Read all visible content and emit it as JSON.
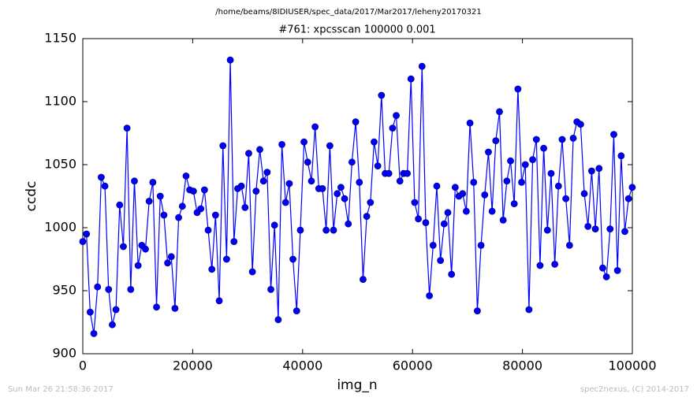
{
  "chart_data": {
    "type": "line",
    "suptitle": "/home/beams/8IDIUSER/spec_data/2017/Mar2017/leheny20170321",
    "title": "#761: xpcsscan 100000 0.001",
    "xlabel": "img_n",
    "ylabel": "ccdc",
    "footer_left": "Sun Mar 26 21:58:36 2017",
    "footer_right": "spec2nexus, (C) 2014-2017",
    "color": "#0000ff",
    "marker": "circle",
    "xlim": [
      0,
      100000
    ],
    "xticks": [
      0,
      20000,
      40000,
      60000,
      80000,
      100000
    ],
    "ylim": [
      900,
      1150
    ],
    "yticks": [
      900,
      950,
      1000,
      1050,
      1100,
      1150
    ],
    "x": [
      0,
      671,
      1342,
      2013,
      2684,
      3355,
      4026,
      4697,
      5368,
      6039,
      6710,
      7381,
      8052,
      8723,
      9394,
      10065,
      10736,
      11407,
      12078,
      12749,
      13420,
      14091,
      14762,
      15433,
      16104,
      16775,
      17446,
      18117,
      18788,
      19459,
      20130,
      20801,
      21472,
      22143,
      22814,
      23485,
      24156,
      24827,
      25498,
      26169,
      26840,
      27511,
      28182,
      28853,
      29524,
      30195,
      30866,
      31537,
      32208,
      32879,
      33550,
      34221,
      34892,
      35563,
      36234,
      36905,
      37576,
      38247,
      38918,
      39589,
      40260,
      40931,
      41602,
      42273,
      42944,
      43615,
      44286,
      44957,
      45628,
      46299,
      46970,
      47641,
      48312,
      48983,
      49654,
      50325,
      50996,
      51667,
      52338,
      53009,
      53680,
      54351,
      55022,
      55693,
      56364,
      57035,
      57706,
      58377,
      59048,
      59719,
      60390,
      61061,
      61732,
      62403,
      63074,
      63745,
      64416,
      65087,
      65758,
      66429,
      67100,
      67771,
      68442,
      69113,
      69784,
      70455,
      71126,
      71797,
      72468,
      73139,
      73810,
      74481,
      75152,
      75823,
      76494,
      77165,
      77836,
      78507,
      79178,
      79849,
      80520,
      81191,
      81862,
      82533,
      83204,
      83875,
      84546,
      85217,
      85888,
      86559,
      87230,
      87901,
      88572,
      89243,
      89914,
      90585,
      91256,
      91927,
      92598,
      93269,
      93940,
      94611,
      95282,
      95953,
      96624,
      97295,
      97966,
      98637,
      99308,
      99979
    ],
    "values": [
      989,
      995,
      933,
      916,
      953,
      1040,
      1033,
      951,
      923,
      935,
      1018,
      985,
      1079,
      951,
      1037,
      970,
      986,
      983,
      1021,
      1036,
      937,
      1025,
      1010,
      972,
      977,
      936,
      1008,
      1017,
      1041,
      1030,
      1029,
      1012,
      1015,
      1030,
      998,
      967,
      1010,
      942,
      1065,
      975,
      1133,
      989,
      1031,
      1033,
      1016,
      1059,
      965,
      1029,
      1062,
      1037,
      1044,
      951,
      1002,
      927,
      1066,
      1020,
      1035,
      975,
      934,
      998,
      1068,
      1052,
      1037,
      1080,
      1031,
      1031,
      998,
      1065,
      998,
      1027,
      1032,
      1023,
      1003,
      1052,
      1084,
      1036,
      959,
      1009,
      1020,
      1068,
      1049,
      1105,
      1043,
      1043,
      1079,
      1089,
      1037,
      1043,
      1043,
      1118,
      1020,
      1007,
      1128,
      1004,
      946,
      986,
      1033,
      974,
      1003,
      1012,
      963,
      1032,
      1025,
      1027,
      1013,
      1083,
      1036,
      934,
      986,
      1026,
      1060,
      1013,
      1069,
      1092,
      1006,
      1037,
      1053,
      1019,
      1110,
      1036,
      1050,
      935,
      1054,
      1070,
      970,
      1063,
      998,
      1043,
      971,
      1033,
      1070,
      1023,
      986,
      1071,
      1084,
      1082,
      1027,
      1001,
      1045,
      999,
      1047,
      968,
      961,
      999,
      1074,
      966,
      1057,
      997,
      1023,
      1032
    ]
  }
}
